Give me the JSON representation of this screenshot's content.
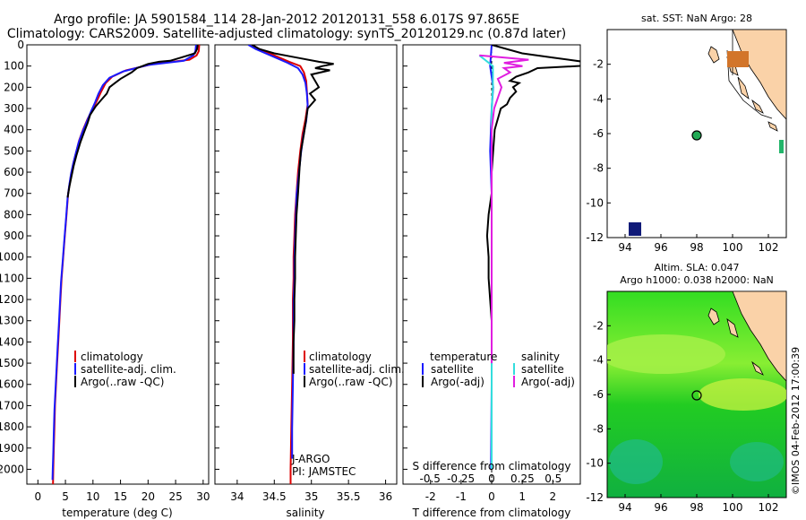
{
  "chart_data": [
    {
      "type": "line",
      "panel": "temperature",
      "title_line1": "Argo profile: JA 5901584_114 28-Jan-2012 20120131_558 6.017S 97.865E",
      "title_line2": "Climatology: CARS2009. Satellite-adjusted climatology: synTS_20120129.nc (0.87d later)",
      "xlabel": "temperature (deg C)",
      "ylabel": "",
      "xlim": [
        -2,
        31
      ],
      "ylim": [
        2070,
        0
      ],
      "xticks": [
        "0",
        "5",
        "10",
        "15",
        "20",
        "25",
        "30"
      ],
      "yticks": [
        "0",
        "100",
        "200",
        "300",
        "400",
        "500",
        "600",
        "700",
        "800",
        "900",
        "1000",
        "1100",
        "1200",
        "1300",
        "1400",
        "1500",
        "1600",
        "1700",
        "1800",
        "1900",
        "2000"
      ],
      "legend": [
        "climatology",
        "satellite-adj. clim.",
        "Argo(..raw -QC)"
      ],
      "series": [
        {
          "name": "climatology",
          "color": "#dd0000",
          "points": [
            [
              29.3,
              0
            ],
            [
              29.2,
              30
            ],
            [
              28.8,
              50
            ],
            [
              27.5,
              70
            ],
            [
              21,
              90
            ],
            [
              16,
              120
            ],
            [
              13.5,
              150
            ],
            [
              12.3,
              180
            ],
            [
              11.5,
              220
            ],
            [
              10.8,
              260
            ],
            [
              10,
              300
            ],
            [
              9,
              350
            ],
            [
              8.2,
              400
            ],
            [
              7.5,
              450
            ],
            [
              7,
              500
            ],
            [
              6.5,
              550
            ],
            [
              6.1,
              600
            ],
            [
              5.8,
              650
            ],
            [
              5.5,
              700
            ],
            [
              5.2,
              800
            ],
            [
              4.9,
              900
            ],
            [
              4.6,
              1000
            ],
            [
              4.3,
              1100
            ],
            [
              4.1,
              1200
            ],
            [
              3.9,
              1300
            ],
            [
              3.7,
              1400
            ],
            [
              3.5,
              1500
            ],
            [
              3.3,
              1600
            ],
            [
              3.1,
              1700
            ],
            [
              3,
              1800
            ],
            [
              2.9,
              1900
            ],
            [
              2.8,
              2000
            ],
            [
              2.75,
              2070
            ]
          ]
        },
        {
          "name": "satellite-adj. clim.",
          "color": "#1a1aff",
          "points": [
            [
              28.7,
              0
            ],
            [
              28.6,
              30
            ],
            [
              28.2,
              50
            ],
            [
              26.5,
              75
            ],
            [
              20,
              95
            ],
            [
              15.5,
              125
            ],
            [
              13,
              155
            ],
            [
              11.8,
              190
            ],
            [
              11,
              230
            ],
            [
              10.4,
              270
            ],
            [
              9.7,
              310
            ],
            [
              8.9,
              360
            ],
            [
              8.1,
              410
            ],
            [
              7.4,
              460
            ],
            [
              6.9,
              510
            ],
            [
              6.4,
              560
            ],
            [
              6,
              610
            ],
            [
              5.7,
              660
            ],
            [
              5.4,
              720
            ],
            [
              5.1,
              820
            ],
            [
              4.8,
              920
            ],
            [
              4.5,
              1020
            ],
            [
              4.2,
              1120
            ],
            [
              4,
              1220
            ],
            [
              3.8,
              1320
            ],
            [
              3.6,
              1420
            ],
            [
              3.4,
              1520
            ],
            [
              3.2,
              1620
            ],
            [
              3,
              1720
            ],
            [
              2.9,
              1820
            ],
            [
              2.8,
              1920
            ],
            [
              2.7,
              2000
            ],
            [
              2.65,
              2050
            ]
          ]
        },
        {
          "name": "Argo(..raw -QC)",
          "color": "#000000",
          "points": [
            [
              29,
              0
            ],
            [
              28.9,
              20
            ],
            [
              28.5,
              40
            ],
            [
              26,
              60
            ],
            [
              24,
              75
            ],
            [
              22,
              80
            ],
            [
              20,
              90
            ],
            [
              18,
              110
            ],
            [
              17,
              130
            ],
            [
              15,
              160
            ],
            [
              14,
              180
            ],
            [
              13,
              200
            ],
            [
              12.5,
              230
            ],
            [
              11.5,
              260
            ],
            [
              10.5,
              290
            ],
            [
              9.5,
              330
            ],
            [
              9,
              370
            ],
            [
              8.4,
              410
            ],
            [
              7.7,
              460
            ],
            [
              7,
              520
            ],
            [
              6.5,
              570
            ],
            [
              6.1,
              620
            ],
            [
              5.7,
              670
            ],
            [
              5.4,
              720
            ]
          ]
        }
      ]
    },
    {
      "type": "line",
      "panel": "salinity",
      "xlabel": "salinity",
      "xlim": [
        33.7,
        36.15
      ],
      "ylim": [
        2070,
        0
      ],
      "xticks": [
        "34",
        "34.5",
        "35",
        "35.5",
        "36"
      ],
      "legend": [
        "climatology",
        "satellite-adj. clim.",
        "Argo(..raw -QC)"
      ],
      "annotation_line1": "J-ARGO",
      "annotation_line2": "PI: JAMSTEC",
      "series": [
        {
          "name": "climatology",
          "color": "#dd0000",
          "points": [
            [
              34.2,
              0
            ],
            [
              34.3,
              20
            ],
            [
              34.5,
              50
            ],
            [
              34.7,
              80
            ],
            [
              34.85,
              100
            ],
            [
              34.9,
              130
            ],
            [
              34.93,
              170
            ],
            [
              34.94,
              220
            ],
            [
              34.95,
              280
            ],
            [
              34.92,
              350
            ],
            [
              34.88,
              420
            ],
            [
              34.85,
              500
            ],
            [
              34.82,
              600
            ],
            [
              34.8,
              700
            ],
            [
              34.78,
              800
            ],
            [
              34.77,
              900
            ],
            [
              34.76,
              1000
            ],
            [
              34.76,
              1100
            ],
            [
              34.75,
              1200
            ],
            [
              34.75,
              1400
            ],
            [
              34.74,
              1600
            ],
            [
              34.73,
              1800
            ],
            [
              34.72,
              2000
            ],
            [
              34.72,
              2070
            ]
          ]
        },
        {
          "name": "satellite-adj. clim.",
          "color": "#1a1aff",
          "points": [
            [
              34.15,
              0
            ],
            [
              34.25,
              20
            ],
            [
              34.45,
              50
            ],
            [
              34.68,
              85
            ],
            [
              34.82,
              110
            ],
            [
              34.88,
              140
            ],
            [
              34.92,
              180
            ],
            [
              34.94,
              230
            ],
            [
              34.95,
              290
            ],
            [
              34.93,
              360
            ],
            [
              34.89,
              430
            ],
            [
              34.86,
              510
            ],
            [
              34.83,
              610
            ],
            [
              34.8,
              710
            ],
            [
              34.79,
              810
            ],
            [
              34.78,
              910
            ],
            [
              34.77,
              1010
            ],
            [
              34.77,
              1110
            ],
            [
              34.76,
              1210
            ],
            [
              34.76,
              1410
            ],
            [
              34.75,
              1610
            ],
            [
              34.74,
              1810
            ],
            [
              34.74,
              1950
            ]
          ]
        },
        {
          "name": "Argo(..raw -QC)",
          "color": "#000000",
          "points": [
            [
              34.2,
              0
            ],
            [
              34.3,
              20
            ],
            [
              34.5,
              40
            ],
            [
              34.8,
              60
            ],
            [
              35.1,
              80
            ],
            [
              35.3,
              90
            ],
            [
              35.15,
              100
            ],
            [
              35.05,
              110
            ],
            [
              35.25,
              120
            ],
            [
              35.0,
              140
            ],
            [
              35.05,
              170
            ],
            [
              35.1,
              200
            ],
            [
              34.98,
              230
            ],
            [
              35.05,
              260
            ],
            [
              34.95,
              300
            ],
            [
              34.93,
              350
            ],
            [
              34.9,
              420
            ],
            [
              34.86,
              500
            ],
            [
              34.84,
              580
            ],
            [
              34.82,
              700
            ],
            [
              34.8,
              800
            ],
            [
              34.79,
              900
            ],
            [
              34.78,
              1000
            ],
            [
              34.78,
              1100
            ],
            [
              34.77,
              1200
            ],
            [
              34.77,
              1300
            ],
            [
              34.76,
              1400
            ],
            [
              34.76,
              1550
            ]
          ]
        }
      ]
    },
    {
      "type": "line",
      "panel": "differences",
      "xlabel": "T difference from climatology",
      "xlabel_top": "S difference from climatology",
      "xlim_T": [
        -2.9,
        2.9
      ],
      "xlim_S": [
        -0.72,
        0.72
      ],
      "ylim": [
        2070,
        0
      ],
      "xticks_T": [
        "-2",
        "-1",
        "0",
        "1",
        "2"
      ],
      "xticks_S": [
        "-0.5",
        "-0.25",
        "0",
        "0.25",
        "0.5"
      ],
      "legend_temperature_title": "temperature",
      "legend_salinity_title": "salinity",
      "legend": [
        "satellite",
        "Argo(-adj)",
        "satellite",
        "Argo(-adj)"
      ],
      "series": [
        {
          "name": "T satellite",
          "color": "#1a1aff",
          "points": [
            [
              0,
              0
            ],
            [
              -0.05,
              100
            ],
            [
              0.05,
              200
            ],
            [
              0,
              300
            ],
            [
              -0.05,
              500
            ],
            [
              0,
              700
            ],
            [
              0,
              900
            ],
            [
              0,
              1200
            ],
            [
              0,
              1600
            ],
            [
              -0.02,
              2000
            ]
          ]
        },
        {
          "name": "T Argo(-adj)",
          "color": "#000000",
          "points": [
            [
              0,
              0
            ],
            [
              1,
              40
            ],
            [
              2,
              60
            ],
            [
              3,
              80
            ],
            [
              3.5,
              95
            ],
            [
              1.5,
              110
            ],
            [
              1.2,
              130
            ],
            [
              0.8,
              150
            ],
            [
              0.6,
              170
            ],
            [
              0.9,
              180
            ],
            [
              0.7,
              200
            ],
            [
              0.8,
              220
            ],
            [
              0.6,
              250
            ],
            [
              0.5,
              280
            ],
            [
              0.3,
              300
            ],
            [
              0.2,
              350
            ],
            [
              0.1,
              400
            ],
            [
              0,
              600
            ],
            [
              0,
              700
            ],
            [
              -0.1,
              800
            ],
            [
              -0.15,
              900
            ],
            [
              -0.1,
              1000
            ],
            [
              -0.1,
              1100
            ],
            [
              -0.05,
              1200
            ],
            [
              0,
              1300
            ],
            [
              0,
              1400
            ],
            [
              0,
              1500
            ]
          ]
        },
        {
          "name": "S satellite",
          "color": "#33dddd",
          "points": [
            [
              -0.1,
              50
            ],
            [
              0.01,
              100
            ],
            [
              0.01,
              200
            ],
            [
              0,
              300
            ],
            [
              0,
              500
            ],
            [
              0,
              800
            ],
            [
              0,
              1100
            ],
            [
              0,
              1400
            ],
            [
              0,
              1700
            ],
            [
              0,
              2000
            ]
          ]
        },
        {
          "name": "S Argo(-adj)",
          "color": "#e01ee0",
          "points": [
            [
              -0.1,
              50
            ],
            [
              0.3,
              70
            ],
            [
              0.1,
              85
            ],
            [
              0.25,
              100
            ],
            [
              0.1,
              110
            ],
            [
              0.15,
              130
            ],
            [
              0.05,
              160
            ],
            [
              0.08,
              200
            ],
            [
              0.05,
              250
            ],
            [
              0.02,
              300
            ],
            [
              0,
              400
            ],
            [
              0,
              600
            ],
            [
              0,
              800
            ],
            [
              0,
              1000
            ],
            [
              0,
              1200
            ],
            [
              0,
              1400
            ],
            [
              0,
              1500
            ]
          ]
        }
      ]
    },
    {
      "type": "map",
      "panel": "sst_map",
      "title": "sat. SST: NaN Argo: 28",
      "xlim": [
        93,
        103
      ],
      "ylim": [
        -12,
        0
      ],
      "xticks": [
        "94",
        "96",
        "98",
        "100",
        "102"
      ],
      "yticks": [
        "-2",
        "-4",
        "-6",
        "-8",
        "-10",
        "-12"
      ],
      "argo_position": [
        97.865,
        -6.017
      ],
      "land_color": "#fad2a8"
    },
    {
      "type": "heatmap",
      "panel": "sla_map",
      "title_line1": "Altim. SLA: 0.047",
      "title_line2": "Argo h1000: 0.038 h2000: NaN",
      "xlim": [
        93,
        103
      ],
      "ylim": [
        -12,
        0
      ],
      "xticks": [
        "94",
        "96",
        "98",
        "100",
        "102"
      ],
      "yticks": [
        "-2",
        "-4",
        "-6",
        "-8",
        "-10",
        "-12"
      ],
      "argo_position": [
        97.865,
        -6.017
      ]
    }
  ],
  "footer_stamp": "©IMOS 04-Feb-2012 17:00:39"
}
